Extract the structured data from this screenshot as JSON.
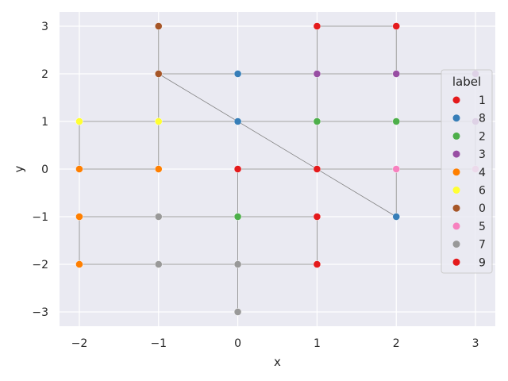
{
  "chart_data": {
    "type": "scatter",
    "xlabel": "x",
    "ylabel": "y",
    "xlim": [
      -2.25,
      3.25
    ],
    "ylim": [
      -3.3,
      3.3
    ],
    "x_ticks": [
      -2,
      -1,
      0,
      1,
      2,
      3
    ],
    "y_ticks": [
      -3,
      -2,
      -1,
      0,
      1,
      2,
      3
    ],
    "x_tick_labels": [
      "−2",
      "−1",
      "0",
      "1",
      "2",
      "3"
    ],
    "y_tick_labels": [
      "−3",
      "−2",
      "−1",
      "0",
      "1",
      "2",
      "3"
    ],
    "grid": true,
    "legend": {
      "title": "label",
      "placement": "right",
      "entries": [
        {
          "name": "1",
          "color": "#e41a1c"
        },
        {
          "name": "8",
          "color": "#377eb8"
        },
        {
          "name": "2",
          "color": "#4daf4a"
        },
        {
          "name": "3",
          "color": "#984ea3"
        },
        {
          "name": "4",
          "color": "#ff7f00"
        },
        {
          "name": "6",
          "color": "#ffff33"
        },
        {
          "name": "0",
          "color": "#a65628"
        },
        {
          "name": "5",
          "color": "#f781bf"
        },
        {
          "name": "7",
          "color": "#999999"
        },
        {
          "name": "9",
          "color": "#e41a1c"
        }
      ]
    },
    "path_color": "#808080",
    "path": [
      [
        0,
        -3
      ],
      [
        0,
        -2
      ],
      [
        -1,
        -2
      ],
      [
        -2,
        -2
      ],
      [
        -2,
        -1
      ],
      [
        -1,
        -1
      ],
      [
        0,
        -1
      ],
      [
        1,
        -1
      ],
      [
        1,
        -2
      ],
      [
        0,
        -2
      ],
      [
        0,
        0
      ],
      [
        1,
        0
      ],
      [
        2,
        0
      ],
      [
        3,
        0
      ],
      [
        3,
        1
      ],
      [
        2,
        1
      ],
      [
        1,
        1
      ],
      [
        0,
        1
      ],
      [
        -1,
        1
      ],
      [
        -2,
        1
      ],
      [
        -2,
        0
      ],
      [
        -1,
        0
      ],
      [
        -1,
        2
      ],
      [
        0,
        2
      ],
      [
        1,
        2
      ],
      [
        2,
        2
      ],
      [
        3,
        2
      ],
      [
        2,
        2
      ],
      [
        2,
        3
      ],
      [
        1,
        3
      ],
      [
        1,
        0
      ],
      [
        2,
        0
      ],
      [
        2,
        -1
      ],
      [
        -1,
        2
      ],
      [
        -1,
        3
      ]
    ],
    "points": [
      {
        "x": -2,
        "y": 1,
        "label": "6"
      },
      {
        "x": -2,
        "y": 0,
        "label": "4"
      },
      {
        "x": -2,
        "y": -1,
        "label": "4"
      },
      {
        "x": -2,
        "y": -2,
        "label": "4"
      },
      {
        "x": -1,
        "y": 3,
        "label": "0"
      },
      {
        "x": -1,
        "y": 2,
        "label": "0"
      },
      {
        "x": -1,
        "y": 1,
        "label": "6"
      },
      {
        "x": -1,
        "y": 0,
        "label": "4"
      },
      {
        "x": -1,
        "y": -1,
        "label": "7"
      },
      {
        "x": -1,
        "y": -2,
        "label": "7"
      },
      {
        "x": 0,
        "y": 2,
        "label": "8"
      },
      {
        "x": 0,
        "y": 1,
        "label": "8"
      },
      {
        "x": 0,
        "y": 0,
        "label": "1"
      },
      {
        "x": 0,
        "y": -1,
        "label": "2"
      },
      {
        "x": 0,
        "y": -2,
        "label": "7"
      },
      {
        "x": 0,
        "y": -3,
        "label": "7"
      },
      {
        "x": 1,
        "y": 3,
        "label": "1"
      },
      {
        "x": 1,
        "y": 2,
        "label": "3"
      },
      {
        "x": 1,
        "y": 1,
        "label": "2"
      },
      {
        "x": 1,
        "y": 0,
        "label": "1"
      },
      {
        "x": 1,
        "y": -1,
        "label": "1"
      },
      {
        "x": 1,
        "y": -2,
        "label": "1"
      },
      {
        "x": 2,
        "y": 3,
        "label": "1"
      },
      {
        "x": 2,
        "y": 2,
        "label": "3"
      },
      {
        "x": 2,
        "y": 1,
        "label": "2"
      },
      {
        "x": 2,
        "y": 0,
        "label": "5"
      },
      {
        "x": 2,
        "y": -1,
        "label": "8"
      },
      {
        "x": 3,
        "y": 2,
        "label": "3"
      },
      {
        "x": 3,
        "y": 1,
        "label": "3"
      },
      {
        "x": 3,
        "y": 0,
        "label": "5"
      }
    ]
  }
}
